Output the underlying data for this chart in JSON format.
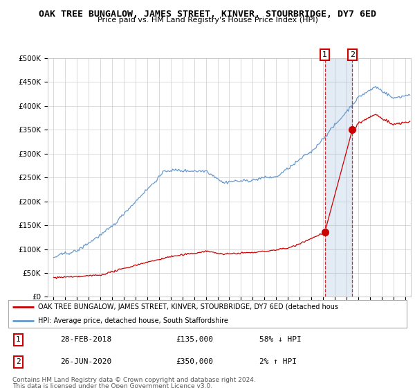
{
  "title": "OAK TREE BUNGALOW, JAMES STREET, KINVER, STOURBRIDGE, DY7 6ED",
  "subtitle": "Price paid vs. HM Land Registry's House Price Index (HPI)",
  "legend_line1": "OAK TREE BUNGALOW, JAMES STREET, KINVER, STOURBRIDGE, DY7 6ED (detached hous",
  "legend_line2": "HPI: Average price, detached house, South Staffordshire",
  "footer1": "Contains HM Land Registry data © Crown copyright and database right 2024.",
  "footer2": "This data is licensed under the Open Government Licence v3.0.",
  "point1_label": "1",
  "point1_date": "28-FEB-2018",
  "point1_price": "£135,000",
  "point1_hpi": "58% ↓ HPI",
  "point2_label": "2",
  "point2_date": "26-JUN-2020",
  "point2_price": "£350,000",
  "point2_hpi": "2% ↑ HPI",
  "red_color": "#cc0000",
  "blue_color": "#6699cc",
  "shade_color": "#ddeeff",
  "background_color": "#ffffff",
  "grid_color": "#cccccc",
  "ylim": [
    0,
    500000
  ],
  "xlim_start": 1994.5,
  "xlim_end": 2025.5,
  "point1_x": 2018.15,
  "point1_y": 135000,
  "point2_x": 2020.5,
  "point2_y": 350000
}
